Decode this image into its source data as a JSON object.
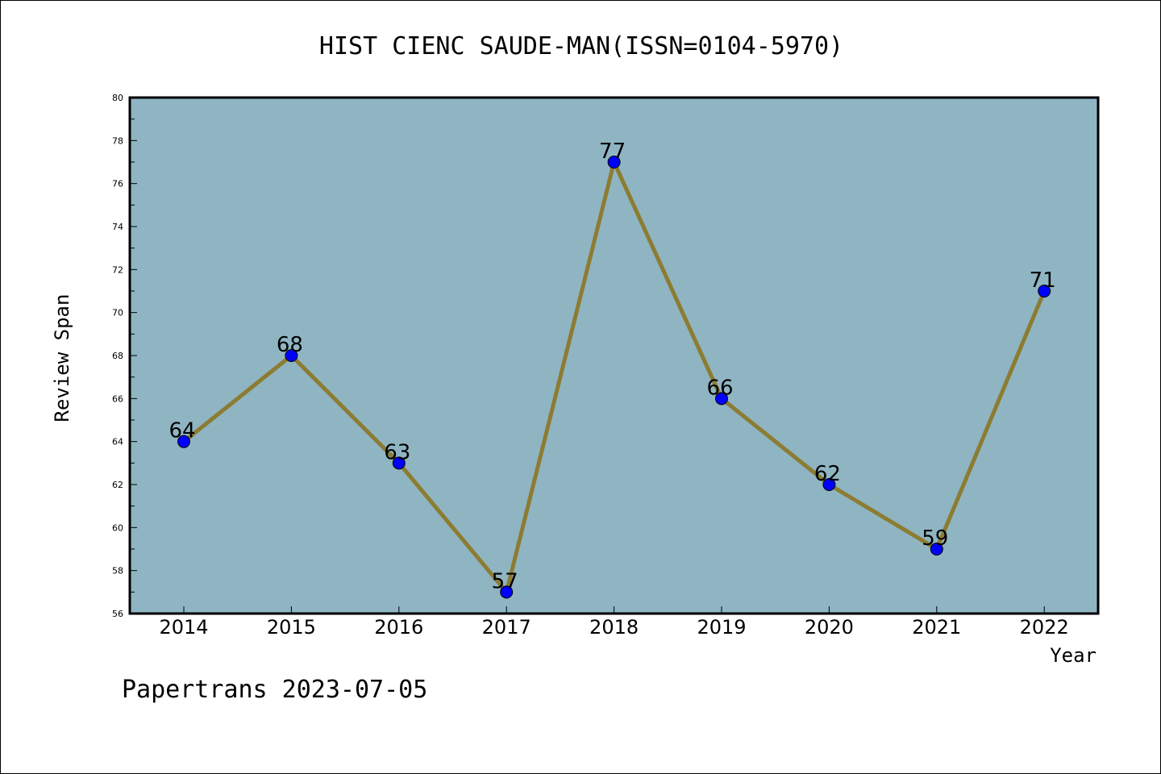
{
  "chart_data": {
    "type": "line",
    "title": "HIST CIENC SAUDE-MAN(ISSN=0104-5970)",
    "xlabel": "Year",
    "ylabel": "Review Span",
    "categories": [
      "2014",
      "2015",
      "2016",
      "2017",
      "2018",
      "2019",
      "2020",
      "2021",
      "2022"
    ],
    "series": [
      {
        "values": [
          64,
          68,
          63,
          57,
          77,
          66,
          62,
          59,
          71
        ]
      }
    ],
    "ylim": [
      56,
      80
    ],
    "yticks": [
      "56",
      "58",
      "60",
      "62",
      "64",
      "66",
      "68",
      "70",
      "72",
      "74",
      "76",
      "78",
      "80"
    ],
    "grid": false,
    "colors": {
      "plot_background": "#8fb5c3",
      "line": "#8c7c32",
      "marker": "#0000ff"
    }
  },
  "footer": {
    "watermark": "Papertrans 2023-07-05"
  }
}
